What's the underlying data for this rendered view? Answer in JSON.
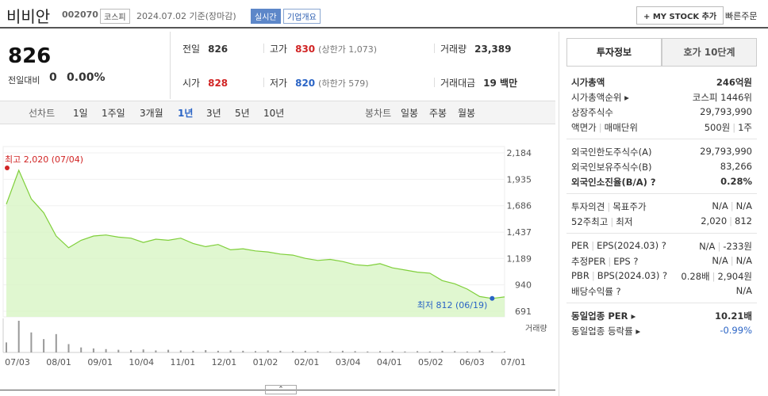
{
  "header": {
    "title": "비비안",
    "code": "002070",
    "market": "코스피",
    "date": "2024.07.02 기준(장마감)",
    "realtime": "실시간",
    "company": "기업개요",
    "mystock": "+ MY STOCK 추가",
    "quick_order": "빠른주문"
  },
  "summary": {
    "price": "826",
    "change_label": "전일대비",
    "change": "0",
    "change_pct": "0.00%",
    "items": [
      {
        "label": "전일",
        "value": "826",
        "color": "#333"
      },
      {
        "label": "고가",
        "value": "830",
        "extra": "(상한가 1,073)",
        "color": "#d12424"
      },
      {
        "label": "거래량",
        "value": "23,389",
        "color": "#333"
      },
      {
        "label": "시가",
        "value": "828",
        "color": "#d12424"
      },
      {
        "label": "저가",
        "value": "820",
        "extra": "(하한가 579)",
        "color": "#2a64c5"
      },
      {
        "label": "거래대금",
        "value": "19 백만",
        "color": "#333"
      }
    ]
  },
  "tabs": {
    "line_label": "선차트",
    "line": [
      "1일",
      "1주일",
      "3개월",
      "1년",
      "3년",
      "5년",
      "10년"
    ],
    "selected": 3,
    "candle_label": "봉차트",
    "candle": [
      "일봉",
      "주봉",
      "월봉"
    ]
  },
  "chart": {
    "type": "area",
    "color": "#7fcf3a",
    "fill": "#d8f5c4",
    "prices": [
      1700,
      2020,
      1750,
      1620,
      1400,
      1290,
      1360,
      1400,
      1410,
      1390,
      1380,
      1340,
      1370,
      1360,
      1380,
      1330,
      1300,
      1320,
      1270,
      1280,
      1260,
      1250,
      1230,
      1220,
      1190,
      1170,
      1180,
      1160,
      1130,
      1120,
      1140,
      1100,
      1080,
      1060,
      1050,
      980,
      950,
      900,
      830,
      812,
      826
    ],
    "volumes": [
      30,
      95,
      60,
      40,
      55,
      25,
      15,
      12,
      10,
      8,
      7,
      9,
      6,
      8,
      6,
      5,
      7,
      5,
      6,
      5,
      4,
      6,
      5,
      4,
      5,
      4,
      3,
      5,
      4,
      3,
      4,
      5,
      3,
      4,
      3,
      5,
      4,
      3,
      6,
      4,
      3
    ],
    "ylim": [
      691,
      2184
    ],
    "yticks": [
      {
        "value": 2184,
        "label": "2,184"
      },
      {
        "value": 1935,
        "label": "1,935"
      },
      {
        "value": 1686,
        "label": "1,686"
      },
      {
        "value": 1437,
        "label": "1,437"
      },
      {
        "value": 1189,
        "label": "1,189"
      },
      940,
      691
    ],
    "x_labels": [
      "07/03",
      "08/01",
      "09/01",
      "10/04",
      "11/01",
      "12/01",
      "01/02",
      "02/01",
      "03/04",
      "04/01",
      "05/02",
      "06/03",
      "07/01"
    ],
    "max_label": "최고 2,020 (07/04)",
    "min_label": "최저 812 (06/19)",
    "volume_label": "거래량"
  },
  "sidebar": {
    "tabs": [
      "투자정보",
      "호가 10단계"
    ],
    "sections": [
      [
        {
          "label": [
            "시가총액"
          ],
          "value": [
            "246억원"
          ],
          "bold": true
        },
        {
          "label": [
            "시가총액순위 ▸"
          ],
          "value": [
            "코스피 1446위"
          ]
        },
        {
          "label": [
            "상장주식수"
          ],
          "value": [
            "29,793,990"
          ]
        },
        {
          "label": [
            "액면가",
            "매매단위"
          ],
          "value": [
            "500원",
            "1주"
          ]
        }
      ],
      [
        {
          "label": [
            "외국인한도주식수(A)"
          ],
          "value": [
            "29,793,990"
          ]
        },
        {
          "label": [
            "외국인보유주식수(B)"
          ],
          "value": [
            "83,266"
          ]
        },
        {
          "label": [
            "외국인소진율(B/A) ?"
          ],
          "value": [
            "0.28%"
          ],
          "bold": true
        }
      ],
      [
        {
          "label": [
            "투자의견",
            "목표주가"
          ],
          "value": [
            "N/A",
            "N/A"
          ]
        },
        {
          "label": [
            "52주최고",
            "최저"
          ],
          "value": [
            "2,020",
            "812"
          ]
        }
      ],
      [
        {
          "label": [
            "PER",
            "EPS(2024.03) ?"
          ],
          "value": [
            "N/A",
            "-233원"
          ]
        },
        {
          "label": [
            "추정PER",
            "EPS ?"
          ],
          "value": [
            "N/A",
            "N/A"
          ]
        },
        {
          "label": [
            "PBR",
            "BPS(2024.03) ?"
          ],
          "value": [
            "0.28배",
            "2,904원"
          ]
        },
        {
          "label": [
            "배당수익률 ?"
          ],
          "value": [
            "N/A"
          ]
        }
      ],
      [
        {
          "label": [
            "동일업종 PER ▸"
          ],
          "value": [
            "10.21배"
          ],
          "bold": true
        },
        {
          "label": [
            "동일업종 등락률 ▸"
          ],
          "value": [
            "-0.99%"
          ],
          "color": "#2a64c5"
        }
      ]
    ]
  },
  "footer": {
    "more": "⌃"
  }
}
